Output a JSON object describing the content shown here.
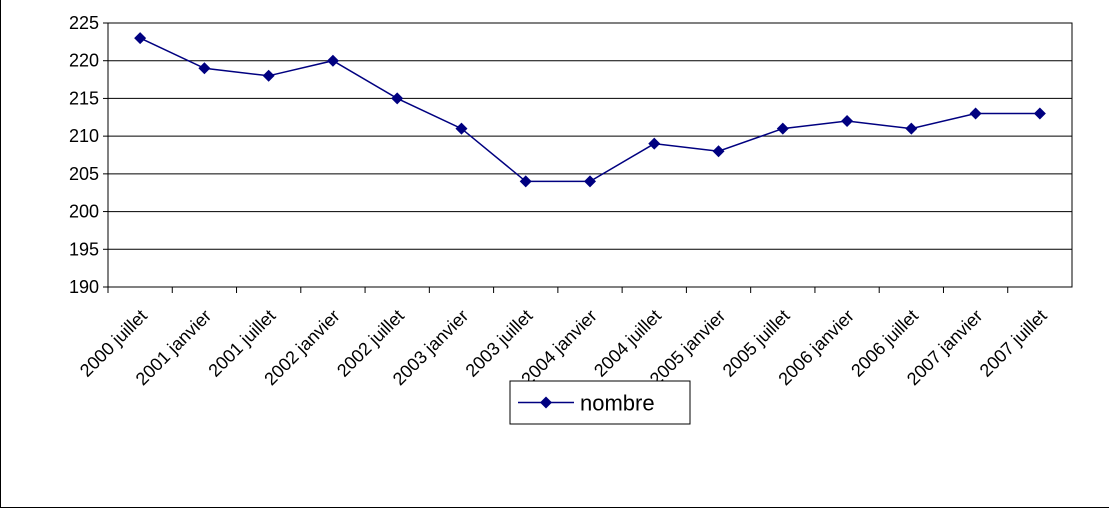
{
  "chart_data": {
    "type": "line",
    "categories": [
      "2000 juillet",
      "2001 janvier",
      "2001 juillet",
      "2002 janvier",
      "2002 juillet",
      "2003 janvier",
      "2003 juillet",
      "2004 janvier",
      "2004 juillet",
      "2005 janvier",
      "2005 juillet",
      "2006 janvier",
      "2006 juillet",
      "2007 janvier",
      "2007 juillet"
    ],
    "series": [
      {
        "name": "nombre",
        "color": "#000080",
        "values": [
          223,
          219,
          218,
          220,
          215,
          211,
          204,
          204,
          209,
          208,
          211,
          212,
          211,
          213,
          213
        ]
      }
    ],
    "ylim": [
      190,
      225
    ],
    "yticks": [
      190,
      195,
      200,
      205,
      210,
      215,
      220,
      225
    ],
    "grid": true,
    "legend": "bottom"
  }
}
